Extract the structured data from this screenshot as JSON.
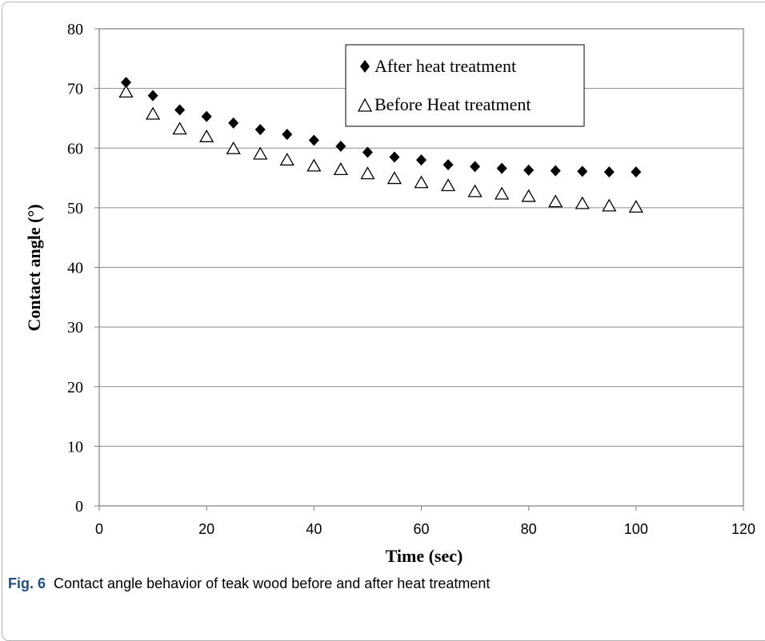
{
  "chart_data": {
    "type": "scatter",
    "xlabel": "Time (sec)",
    "ylabel": "Contact angle (°)",
    "xlim": [
      0,
      120
    ],
    "ylim": [
      0,
      80
    ],
    "xticks": [
      0,
      20,
      40,
      60,
      80,
      100,
      120
    ],
    "yticks": [
      0,
      10,
      20,
      30,
      40,
      50,
      60,
      70,
      80
    ],
    "grid": "horizontal",
    "legend_position": "top-right",
    "series": [
      {
        "name": "After heat treatment",
        "marker": "filled-diamond",
        "color": "#000000",
        "x": [
          5,
          10,
          15,
          20,
          25,
          30,
          35,
          40,
          45,
          50,
          55,
          60,
          65,
          70,
          75,
          80,
          85,
          90,
          95,
          100
        ],
        "values": [
          71.0,
          68.8,
          66.4,
          65.3,
          64.2,
          63.1,
          62.3,
          61.3,
          60.3,
          59.3,
          58.5,
          58.0,
          57.2,
          56.9,
          56.6,
          56.3,
          56.2,
          56.1,
          56.0,
          56.0
        ]
      },
      {
        "name": "Before Heat treatment",
        "marker": "open-triangle",
        "color": "#000000",
        "x": [
          5,
          10,
          15,
          20,
          25,
          30,
          35,
          40,
          45,
          50,
          55,
          60,
          65,
          70,
          75,
          80,
          85,
          90,
          95,
          100
        ],
        "values": [
          69.5,
          65.8,
          63.3,
          62.0,
          60.0,
          59.1,
          58.1,
          57.1,
          56.5,
          55.8,
          55.0,
          54.3,
          53.8,
          52.8,
          52.4,
          52.0,
          51.1,
          50.8,
          50.4,
          50.2
        ]
      }
    ]
  },
  "caption": {
    "label": "Fig. 6",
    "text": "Contact angle behavior of teak wood before and after heat treatment"
  }
}
